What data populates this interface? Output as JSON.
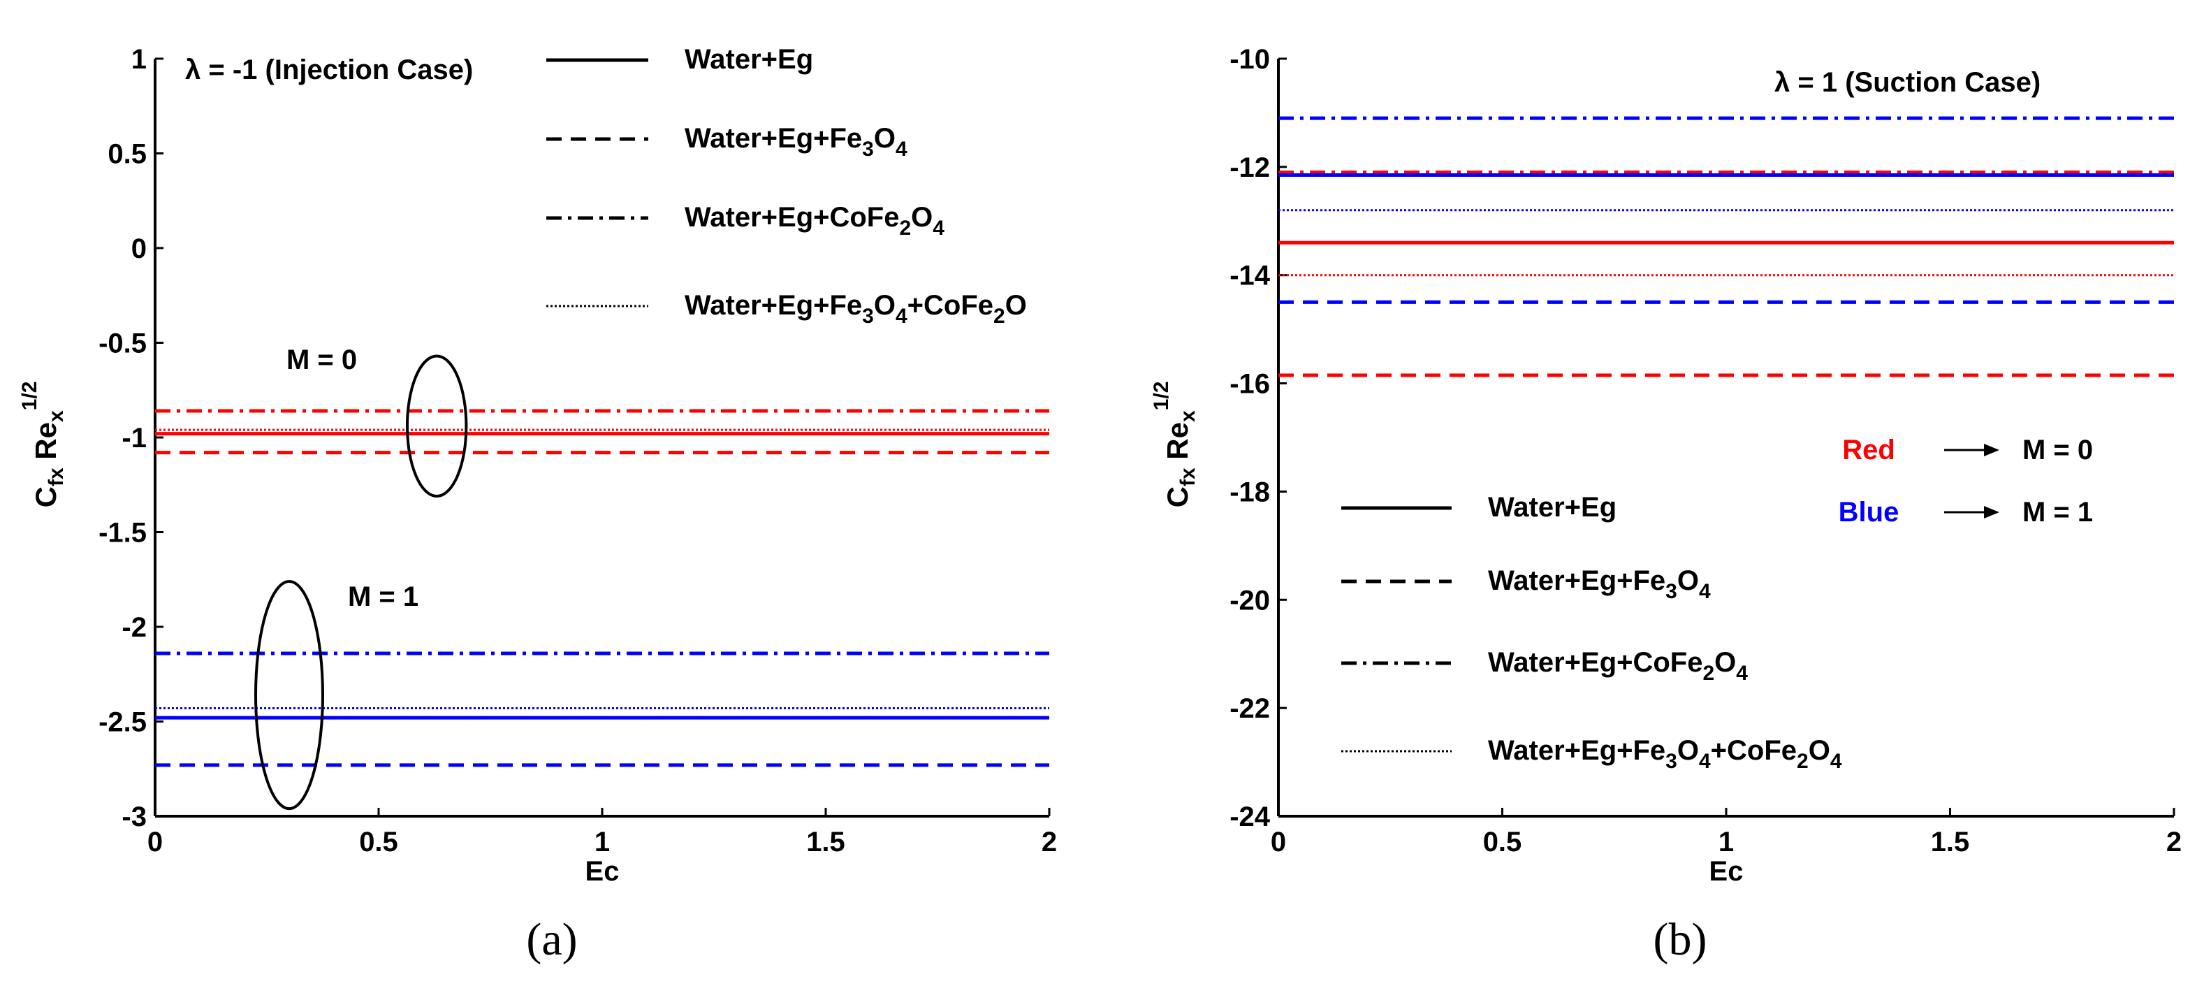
{
  "chart_data": [
    {
      "type": "line",
      "panel_label": "(a)",
      "xlabel": "Ec",
      "ylabel": {
        "main": "C",
        "sub": "fx",
        "mid": " Re",
        "sub2": "x",
        "sup": "1/2"
      },
      "xlim": [
        0,
        2
      ],
      "ylim": [
        -3,
        1
      ],
      "xticks": [
        "0",
        "0.5",
        "1",
        "1.5",
        "2"
      ],
      "yticks": [
        "-3",
        "-2.5",
        "-2",
        "-1.5",
        "-1",
        "-0.5",
        "0",
        "0.5",
        "1"
      ],
      "annotation": {
        "lambda": "λ",
        "text": " = -1 (Injection Case)"
      },
      "group_labels": [
        {
          "text": "M = 0",
          "group": "red"
        },
        {
          "text": "M = 1",
          "group": "blue"
        }
      ],
      "legend": [
        {
          "style": "solid",
          "parts": [
            [
              "Water+Eg",
              "n"
            ]
          ]
        },
        {
          "style": "dashed",
          "parts": [
            [
              "Water+Eg+Fe",
              "n"
            ],
            [
              "3",
              "sub"
            ],
            [
              "O",
              "n"
            ],
            [
              "4",
              "sub"
            ]
          ]
        },
        {
          "style": "dashdot",
          "parts": [
            [
              "Water+Eg+CoFe",
              "n"
            ],
            [
              "2",
              "sub"
            ],
            [
              "O",
              "n"
            ],
            [
              "4",
              "sub"
            ]
          ]
        },
        {
          "style": "dotted",
          "parts": [
            [
              "Water+Eg+Fe",
              "n"
            ],
            [
              "3",
              "sub"
            ],
            [
              "O",
              "n"
            ],
            [
              "4",
              "sub"
            ],
            [
              "+CoFe",
              "n"
            ],
            [
              "2",
              "sub"
            ],
            [
              "O",
              "n"
            ]
          ]
        }
      ],
      "series": [
        {
          "name": "Water+Eg (M = 0)",
          "style": "solid",
          "color": "#ff0000",
          "x": [
            0,
            2
          ],
          "y": [
            -0.98,
            -0.98
          ]
        },
        {
          "name": "Water+Eg+Fe3O4 (M = 0)",
          "style": "dashed",
          "color": "#ff0000",
          "x": [
            0,
            2
          ],
          "y": [
            -1.08,
            -1.08
          ]
        },
        {
          "name": "Water+Eg+CoFe2O4 (M = 0)",
          "style": "dashdot",
          "color": "#ff0000",
          "x": [
            0,
            2
          ],
          "y": [
            -0.86,
            -0.86
          ]
        },
        {
          "name": "Water+Eg+Fe3O4+CoFe2O4 (M = 0)",
          "style": "dotted",
          "color": "#ff0000",
          "x": [
            0,
            2
          ],
          "y": [
            -0.96,
            -0.96
          ]
        },
        {
          "name": "Water+Eg (M = 1)",
          "style": "solid",
          "color": "#0000ff",
          "x": [
            0,
            2
          ],
          "y": [
            -2.48,
            -2.48
          ]
        },
        {
          "name": "Water+Eg+Fe3O4 (M = 1)",
          "style": "dashed",
          "color": "#0000ff",
          "x": [
            0,
            2
          ],
          "y": [
            -2.73,
            -2.73
          ]
        },
        {
          "name": "Water+Eg+CoFe2O4 (M = 1)",
          "style": "dashdot",
          "color": "#0000ff",
          "x": [
            0,
            2
          ],
          "y": [
            -2.14,
            -2.14
          ]
        },
        {
          "name": "Water+Eg+Fe3O4+CoFe2O4 (M = 1)",
          "style": "dotted",
          "color": "#0000ff",
          "x": [
            0,
            2
          ],
          "y": [
            -2.43,
            -2.43
          ]
        }
      ],
      "ellipses": [
        {
          "cx": 0.63,
          "cy": -0.94,
          "rx": 0.066,
          "ry": 0.37
        },
        {
          "cx": 0.3,
          "cy": -2.36,
          "rx": 0.075,
          "ry": 0.6
        }
      ]
    },
    {
      "type": "line",
      "panel_label": "(b)",
      "xlabel": "Ec",
      "ylabel": {
        "main": "C",
        "sub": "fx",
        "mid": " Re",
        "sub2": "x",
        "sup": "1/2"
      },
      "xlim": [
        0,
        2
      ],
      "ylim": [
        -24,
        -10
      ],
      "xticks": [
        "0",
        "0.5",
        "1",
        "1.5",
        "2"
      ],
      "yticks": [
        "-24",
        "-22",
        "-20",
        "-18",
        "-16",
        "-14",
        "-12",
        "-10"
      ],
      "annotation": {
        "lambda": "λ",
        "text": " = 1 (Suction Case)"
      },
      "color_key": [
        {
          "label": "Red",
          "color": "#ff0000",
          "value": "M  = 0"
        },
        {
          "label": "Blue",
          "color": "#0000ff",
          "value": "M  = 1"
        }
      ],
      "legend": [
        {
          "style": "solid",
          "parts": [
            [
              "Water+Eg",
              "n"
            ]
          ]
        },
        {
          "style": "dashed",
          "parts": [
            [
              "Water+Eg+Fe",
              "n"
            ],
            [
              "3",
              "sub"
            ],
            [
              "O",
              "n"
            ],
            [
              "4",
              "sub"
            ]
          ]
        },
        {
          "style": "dashdot",
          "parts": [
            [
              "Water+Eg+CoFe",
              "n"
            ],
            [
              "2",
              "sub"
            ],
            [
              "O",
              "n"
            ],
            [
              "4",
              "sub"
            ]
          ]
        },
        {
          "style": "dotted",
          "parts": [
            [
              "Water+Eg+Fe",
              "n"
            ],
            [
              "3",
              "sub"
            ],
            [
              "O",
              "n"
            ],
            [
              "4",
              "sub"
            ],
            [
              "+CoFe",
              "n"
            ],
            [
              "2",
              "sub"
            ],
            [
              "O",
              "n"
            ],
            [
              "4",
              "sub"
            ]
          ]
        }
      ],
      "series": [
        {
          "name": "Water+Eg (M = 0)",
          "style": "solid",
          "color": "#ff0000",
          "x": [
            0,
            2
          ],
          "y": [
            -13.4,
            -13.4
          ]
        },
        {
          "name": "Water+Eg+Fe3O4 (M = 0)",
          "style": "dashed",
          "color": "#ff0000",
          "x": [
            0,
            2
          ],
          "y": [
            -15.85,
            -15.85
          ]
        },
        {
          "name": "Water+Eg+CoFe2O4 (M = 0)",
          "style": "dashdot",
          "color": "#ff0000",
          "x": [
            0,
            2
          ],
          "y": [
            -12.1,
            -12.1
          ]
        },
        {
          "name": "Water+Eg+Fe3O4+CoFe2O4 (M = 0)",
          "style": "dotted",
          "color": "#ff0000",
          "x": [
            0,
            2
          ],
          "y": [
            -14.0,
            -14.0
          ]
        },
        {
          "name": "Water+Eg (M = 1)",
          "style": "solid",
          "color": "#0000ff",
          "x": [
            0,
            2
          ],
          "y": [
            -12.15,
            -12.15
          ]
        },
        {
          "name": "Water+Eg+Fe3O4 (M = 1)",
          "style": "dashed",
          "color": "#0000ff",
          "x": [
            0,
            2
          ],
          "y": [
            -14.5,
            -14.5
          ]
        },
        {
          "name": "Water+Eg+CoFe2O4 (M = 1)",
          "style": "dashdot",
          "color": "#0000ff",
          "x": [
            0,
            2
          ],
          "y": [
            -11.1,
            -11.1
          ]
        },
        {
          "name": "Water+Eg+Fe3O4+CoFe2O4 (M = 1)",
          "style": "dotted",
          "color": "#0000ff",
          "x": [
            0,
            2
          ],
          "y": [
            -12.8,
            -12.8
          ]
        }
      ]
    }
  ]
}
